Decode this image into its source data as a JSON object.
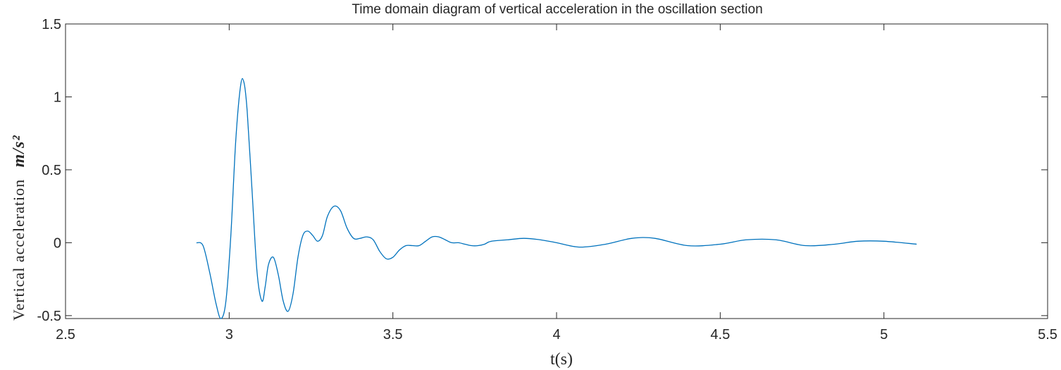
{
  "chart_data": {
    "type": "line",
    "title": "Time domain diagram of vertical acceleration in the oscillation section",
    "xlabel": "t(s)",
    "ylabel": "Vertical acceleration",
    "ylabel_unit": "m/s²",
    "xlim": [
      2.5,
      5.5
    ],
    "ylim": [
      -0.52,
      1.5
    ],
    "xticks": [
      2.5,
      3,
      3.5,
      4,
      4.5,
      5,
      5.5
    ],
    "xtick_labels": [
      "2.5",
      "3",
      "3.5",
      "4",
      "4.5",
      "5",
      "5.5"
    ],
    "yticks": [
      -0.5,
      0,
      0.5,
      1,
      1.5
    ],
    "ytick_labels": [
      "-0.5",
      "0",
      "0.5",
      "1",
      "1.5"
    ],
    "grid": false,
    "line_color": "#0072BD",
    "series": [
      {
        "x": [
          2.9,
          2.92,
          2.94,
          2.96,
          2.975,
          2.99,
          3.005,
          3.02,
          3.035,
          3.045,
          3.055,
          3.07,
          3.085,
          3.1,
          3.11,
          3.12,
          3.135,
          3.15,
          3.165,
          3.18,
          3.195,
          3.21,
          3.225,
          3.24,
          3.255,
          3.27,
          3.285,
          3.3,
          3.32,
          3.34,
          3.36,
          3.38,
          3.4,
          3.42,
          3.44,
          3.46,
          3.48,
          3.5,
          3.52,
          3.54,
          3.56,
          3.58,
          3.6,
          3.62,
          3.64,
          3.66,
          3.68,
          3.7,
          3.72,
          3.74,
          3.76,
          3.78,
          3.8,
          3.85,
          3.9,
          3.95,
          4.0,
          4.07,
          4.15,
          4.23,
          4.3,
          4.4,
          4.5,
          4.58,
          4.67,
          4.76,
          4.85,
          4.92,
          5.0,
          5.1
        ],
        "y": [
          0.0,
          -0.02,
          -0.2,
          -0.42,
          -0.52,
          -0.4,
          0.05,
          0.7,
          1.08,
          1.1,
          0.9,
          0.35,
          -0.2,
          -0.4,
          -0.3,
          -0.15,
          -0.1,
          -0.22,
          -0.4,
          -0.47,
          -0.35,
          -0.1,
          0.05,
          0.08,
          0.05,
          0.01,
          0.05,
          0.18,
          0.25,
          0.22,
          0.1,
          0.03,
          0.03,
          0.04,
          0.02,
          -0.06,
          -0.11,
          -0.1,
          -0.05,
          -0.02,
          -0.02,
          -0.02,
          0.01,
          0.04,
          0.04,
          0.02,
          0.0,
          0.0,
          -0.01,
          -0.02,
          -0.02,
          -0.01,
          0.01,
          0.02,
          0.03,
          0.02,
          0.0,
          -0.03,
          -0.01,
          0.03,
          0.03,
          -0.02,
          -0.01,
          0.02,
          0.02,
          -0.02,
          -0.01,
          0.01,
          0.01,
          -0.01
        ]
      }
    ]
  }
}
